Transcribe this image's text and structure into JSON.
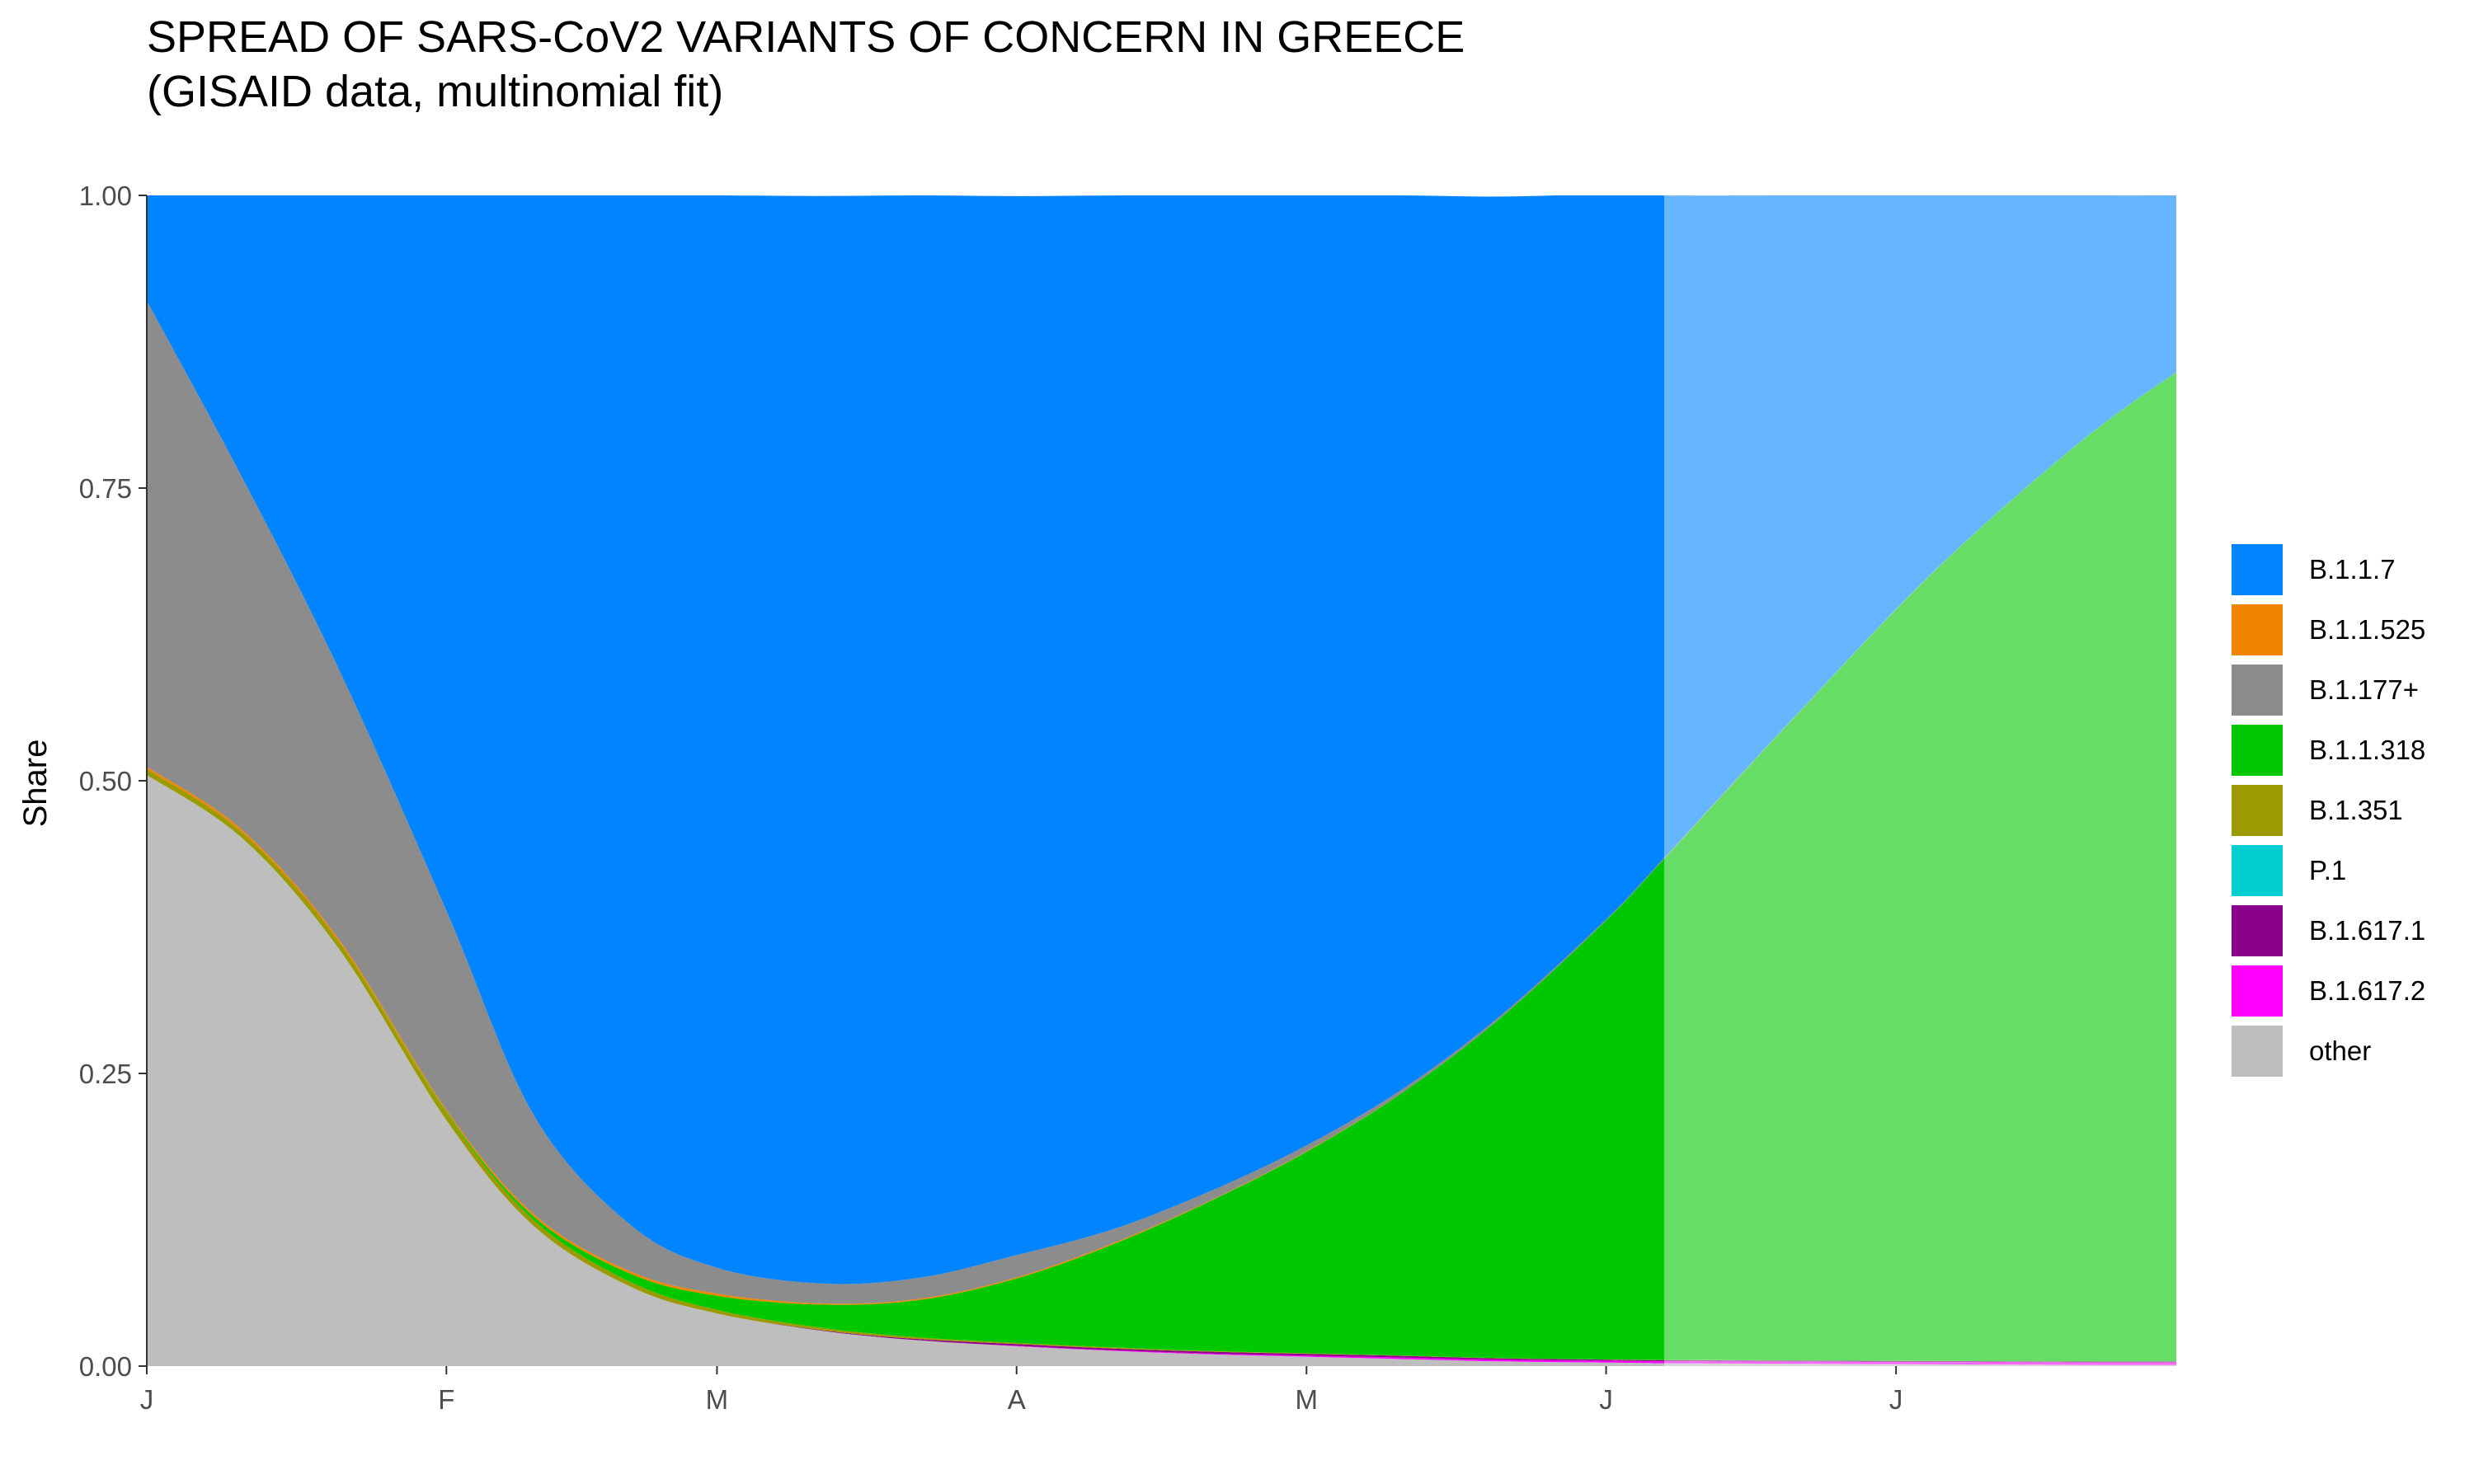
{
  "title": {
    "line1": "SPREAD OF SARS-CoV2 VARIANTS OF CONCERN IN GREECE",
    "line2": "(GISAID data, multinomial fit)"
  },
  "chart_data": {
    "type": "area",
    "stacked": true,
    "ylabel": "Share",
    "xlabel": "",
    "ylim": [
      0,
      1
    ],
    "y_ticks": [
      "0.00",
      "0.25",
      "0.50",
      "0.75",
      "1.00"
    ],
    "x_ticks": [
      "J",
      "F",
      "M",
      "A",
      "M",
      "J",
      "J"
    ],
    "x_tick_positions": [
      0,
      31,
      59,
      90,
      120,
      151,
      181
    ],
    "x": [
      0,
      10,
      20,
      31,
      40,
      50,
      59,
      70,
      80,
      90,
      100,
      110,
      120,
      130,
      140,
      151,
      157,
      170,
      185,
      200,
      210
    ],
    "projection_start_x": 157,
    "grid": false,
    "legend_position": "right",
    "series": [
      {
        "name": "other",
        "color": "#BEBEBE",
        "values": [
          0.505,
          0.45,
          0.355,
          0.21,
          0.12,
          0.068,
          0.045,
          0.03,
          0.022,
          0.017,
          0.013,
          0.01,
          0.008,
          0.006,
          0.004,
          0.003,
          0.0025,
          0.002,
          0.0015,
          0.001,
          0.001
        ]
      },
      {
        "name": "B.1.617.2",
        "color": "#FF00FF",
        "values": [
          0,
          0,
          0,
          0,
          0,
          0,
          0,
          0,
          0,
          0.0003,
          0.0005,
          0.0008,
          0.001,
          0.0012,
          0.0014,
          0.0015,
          0.0016,
          0.0017,
          0.0018,
          0.0019,
          0.002
        ]
      },
      {
        "name": "B.1.617.1",
        "color": "#8B008B",
        "values": [
          0,
          0,
          0,
          0,
          0,
          0,
          0,
          0.0005,
          0.001,
          0.0015,
          0.0015,
          0.0015,
          0.0015,
          0.0015,
          0.0012,
          0.001,
          0.001,
          0.001,
          0.001,
          0.001,
          0.001
        ]
      },
      {
        "name": "P.1",
        "color": "#00CED1",
        "values": [
          0,
          0,
          0,
          0,
          0,
          0,
          0,
          0,
          0,
          0,
          0,
          0,
          0,
          0,
          0,
          0,
          0,
          0,
          0,
          0,
          0
        ]
      },
      {
        "name": "B.1.351",
        "color": "#9B9B00",
        "values": [
          0.005,
          0.005,
          0.006,
          0.006,
          0.005,
          0.004,
          0.003,
          0.002,
          0.0015,
          0.001,
          0.001,
          0.0005,
          0.0005,
          0.0003,
          0.0002,
          0.0001,
          0.0001,
          0.0001,
          0,
          0,
          0
        ]
      },
      {
        "name": "B.1.1.318",
        "color": "#00C800",
        "values": [
          0,
          0,
          0,
          0.001,
          0.003,
          0.007,
          0.012,
          0.02,
          0.032,
          0.055,
          0.088,
          0.128,
          0.172,
          0.225,
          0.29,
          0.375,
          0.428,
          0.545,
          0.675,
          0.785,
          0.845
        ]
      },
      {
        "name": "B.1.1.525",
        "color": "#F28500",
        "values": [
          0.002,
          0.002,
          0.002,
          0.002,
          0.002,
          0.002,
          0.002,
          0.001,
          0.001,
          0.001,
          0.001,
          0.0005,
          0.0005,
          0,
          0,
          0,
          0,
          0,
          0,
          0,
          0
        ]
      },
      {
        "name": "B.1.177+",
        "color": "#8C8C8C",
        "values": [
          0.398,
          0.3,
          0.23,
          0.17,
          0.085,
          0.04,
          0.022,
          0.017,
          0.018,
          0.019,
          0.012,
          0.008,
          0.005,
          0.003,
          0.002,
          0.001,
          0.0008,
          0.0005,
          0.0003,
          0.0002,
          0.0001
        ]
      },
      {
        "name": "B.1.1.7",
        "color": "#0084FF",
        "color_projected": "#66B5FF",
        "values": [
          0.09,
          0.243,
          0.407,
          0.611,
          0.785,
          0.879,
          0.916,
          0.929,
          0.9245,
          0.9046,
          0.8829,
          0.8509,
          0.8115,
          0.763,
          0.7002,
          0.6194,
          0.5659,
          0.4497,
          0.3213,
          0.2109,
          0.1509
        ]
      }
    ],
    "legend_entries": [
      {
        "label": "B.1.1.7",
        "color": "#0084FF"
      },
      {
        "label": "B.1.1.525",
        "color": "#F28500"
      },
      {
        "label": "B.1.177+",
        "color": "#8C8C8C"
      },
      {
        "label": "B.1.1.318",
        "color": "#00C800"
      },
      {
        "label": "B.1.351",
        "color": "#9B9B00"
      },
      {
        "label": "P.1",
        "color": "#00CED1"
      },
      {
        "label": "B.1.617.1",
        "color": "#8B008B"
      },
      {
        "label": "B.1.617.2",
        "color": "#FF00FF"
      },
      {
        "label": "other",
        "color": "#BEBEBE"
      }
    ]
  }
}
